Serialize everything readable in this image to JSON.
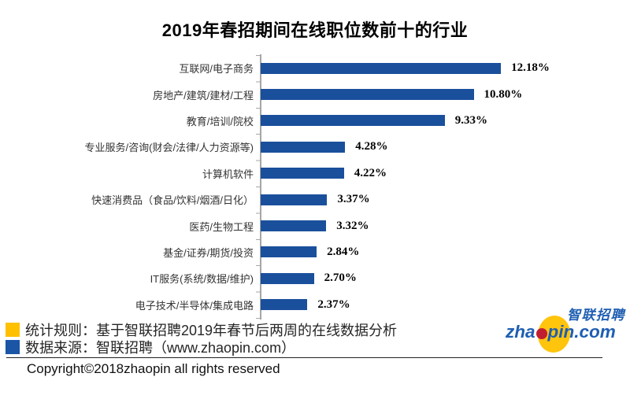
{
  "title": "2019年春招期间在线职位数前十的行业",
  "chart_data": {
    "type": "bar",
    "orientation": "horizontal",
    "title": "2019年春招期间在线职位数前十的行业",
    "categories": [
      "互联网/电子商务",
      "房地产/建筑/建材/工程",
      "教育/培训/院校",
      "专业服务/咨询(财会/法律/人力资源等)",
      "计算机软件",
      "快速消费品（食品/饮料/烟酒/日化）",
      "医药/生物工程",
      "基金/证券/期货/投资",
      "IT服务(系统/数据/维护)",
      "电子技术/半导体/集成电路"
    ],
    "values": [
      12.18,
      10.8,
      9.33,
      4.28,
      4.22,
      3.37,
      3.32,
      2.84,
      2.7,
      2.37
    ],
    "value_labels": [
      "12.18%",
      "10.80%",
      "9.33%",
      "4.28%",
      "4.22%",
      "3.37%",
      "3.32%",
      "2.84%",
      "2.70%",
      "2.37%"
    ],
    "xlabel": "",
    "ylabel": "",
    "xlim": [
      0,
      13
    ],
    "grid": false,
    "legend_position": "none",
    "bar_color": "#1A4F9C",
    "axis_color": "#A6A6A6"
  },
  "footnotes": {
    "items": [
      {
        "swatch": "#FFC000",
        "text": "统计规则：基于智联招聘2019年春节后两周的在线数据分析"
      },
      {
        "swatch": "#1A55A6",
        "text": "数据来源：智联招聘（www.zhaopin.com）"
      }
    ]
  },
  "copyright": "Copyright©2018zhaopin all rights reserved",
  "logo": {
    "cn": "智联招聘",
    "domain_prefix": "zha",
    "domain_suffix": "pin.com",
    "blue": "#1E5EB2",
    "yellow": "#FFC40C",
    "red": "#C01E31"
  }
}
